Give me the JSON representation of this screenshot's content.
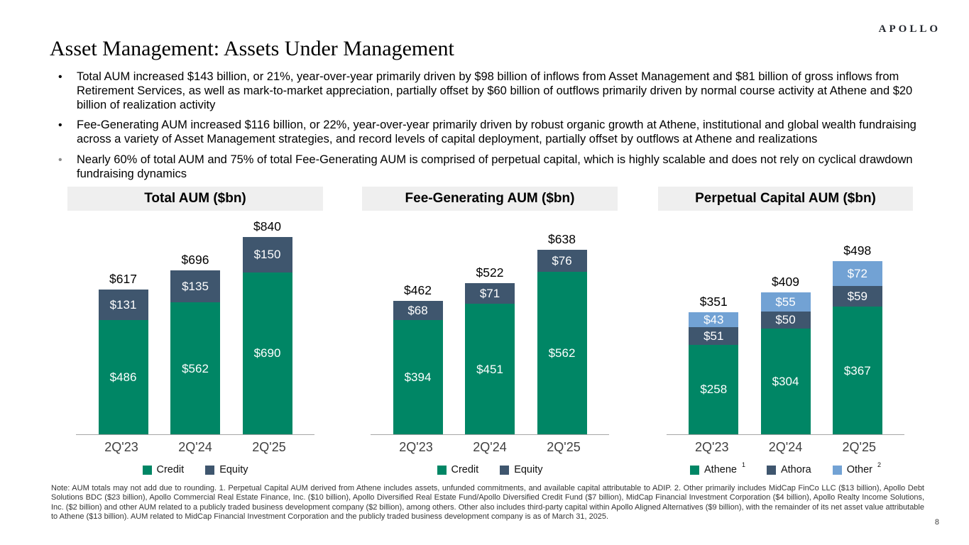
{
  "brand": {
    "logo_text": "APOLLO"
  },
  "page": {
    "title": "Asset Management: Assets Under Management",
    "page_number": "8"
  },
  "bullets": [
    "Total AUM increased $143 billion, or 21%, year-over-year primarily driven by $98 billion of inflows from Asset Management and $81 billion of gross inflows from Retirement Services, as well as mark-to-market appreciation, partially offset by $60 billion of outflows primarily driven by normal course activity at Athene and $20 billion of realization activity",
    "Fee-Generating AUM increased $116 billion, or 22%, year-over-year primarily driven by robust organic growth at Athene, institutional and global wealth fundraising across a variety of Asset Management strategies, and record levels of capital deployment, partially offset by outflows at Athene and realizations",
    "Nearly 60% of total AUM and 75% of total Fee-Generating AUM is comprised of perpetual capital, which is highly scalable and does not rely on cyclical drawdown fundraising dynamics"
  ],
  "colors": {
    "credit": "#008665",
    "equity": "#3f566e",
    "other": "#72a2d4",
    "header_bg": "#efefef",
    "axis": "#a6a6a6"
  },
  "chart_data": [
    {
      "type": "bar",
      "stacked": true,
      "title": "Total AUM ($bn)",
      "categories": [
        "2Q'23",
        "2Q'24",
        "2Q'25"
      ],
      "series": [
        {
          "name": "Credit",
          "color_key": "credit",
          "values": [
            486,
            562,
            690
          ]
        },
        {
          "name": "Equity",
          "color_key": "equity",
          "values": [
            131,
            135,
            150
          ]
        }
      ],
      "totals": [
        617,
        696,
        840
      ],
      "value_prefix": "$",
      "legend": [
        {
          "label": "Credit",
          "color_key": "credit",
          "sup": ""
        },
        {
          "label": "Equity",
          "color_key": "equity",
          "sup": ""
        }
      ]
    },
    {
      "type": "bar",
      "stacked": true,
      "title": "Fee-Generating AUM ($bn)",
      "categories": [
        "2Q'23",
        "2Q'24",
        "2Q'25"
      ],
      "series": [
        {
          "name": "Credit",
          "color_key": "credit",
          "values": [
            394,
            451,
            562
          ]
        },
        {
          "name": "Equity",
          "color_key": "equity",
          "values": [
            68,
            71,
            76
          ]
        }
      ],
      "totals": [
        462,
        522,
        638
      ],
      "value_prefix": "$",
      "legend": [
        {
          "label": "Credit",
          "color_key": "credit",
          "sup": ""
        },
        {
          "label": "Equity",
          "color_key": "equity",
          "sup": ""
        }
      ]
    },
    {
      "type": "bar",
      "stacked": true,
      "title": "Perpetual Capital AUM ($bn)",
      "categories": [
        "2Q'23",
        "2Q'24",
        "2Q'25"
      ],
      "series": [
        {
          "name": "Athene",
          "color_key": "credit",
          "values": [
            258,
            304,
            367
          ]
        },
        {
          "name": "Athora",
          "color_key": "equity",
          "values": [
            51,
            50,
            59
          ]
        },
        {
          "name": "Other",
          "color_key": "other",
          "values": [
            43,
            55,
            72
          ]
        }
      ],
      "totals": [
        351,
        409,
        498
      ],
      "value_prefix": "$",
      "legend": [
        {
          "label": "Athene",
          "color_key": "credit",
          "sup": "1"
        },
        {
          "label": "Athora",
          "color_key": "equity",
          "sup": ""
        },
        {
          "label": "Other",
          "color_key": "other",
          "sup": "2"
        }
      ]
    }
  ],
  "footnote": "Note: AUM totals may not add due to rounding. 1. Perpetual Capital AUM derived from Athene includes assets, unfunded commitments, and available capital attributable to ADIP. 2. Other primarily includes MidCap FinCo LLC ($13 billion), Apollo Debt Solutions BDC ($23 billion), Apollo Commercial Real Estate Finance, Inc. ($10 billion), Apollo Diversified Real Estate Fund/Apollo Diversified Credit Fund ($7 billion), MidCap Financial Investment Corporation ($4 billion), Apollo Realty Income Solutions, Inc. ($2 billion) and other AUM related to a publicly traded business development company ($2 billion), among others. Other also includes third-party capital within Apollo Aligned Alternatives ($9 billion), with the remainder of its net asset value attributable to Athene ($13 billion). AUM related to MidCap Financial Investment Corporation and the publicly traded business development company is as of March 31, 2025."
}
